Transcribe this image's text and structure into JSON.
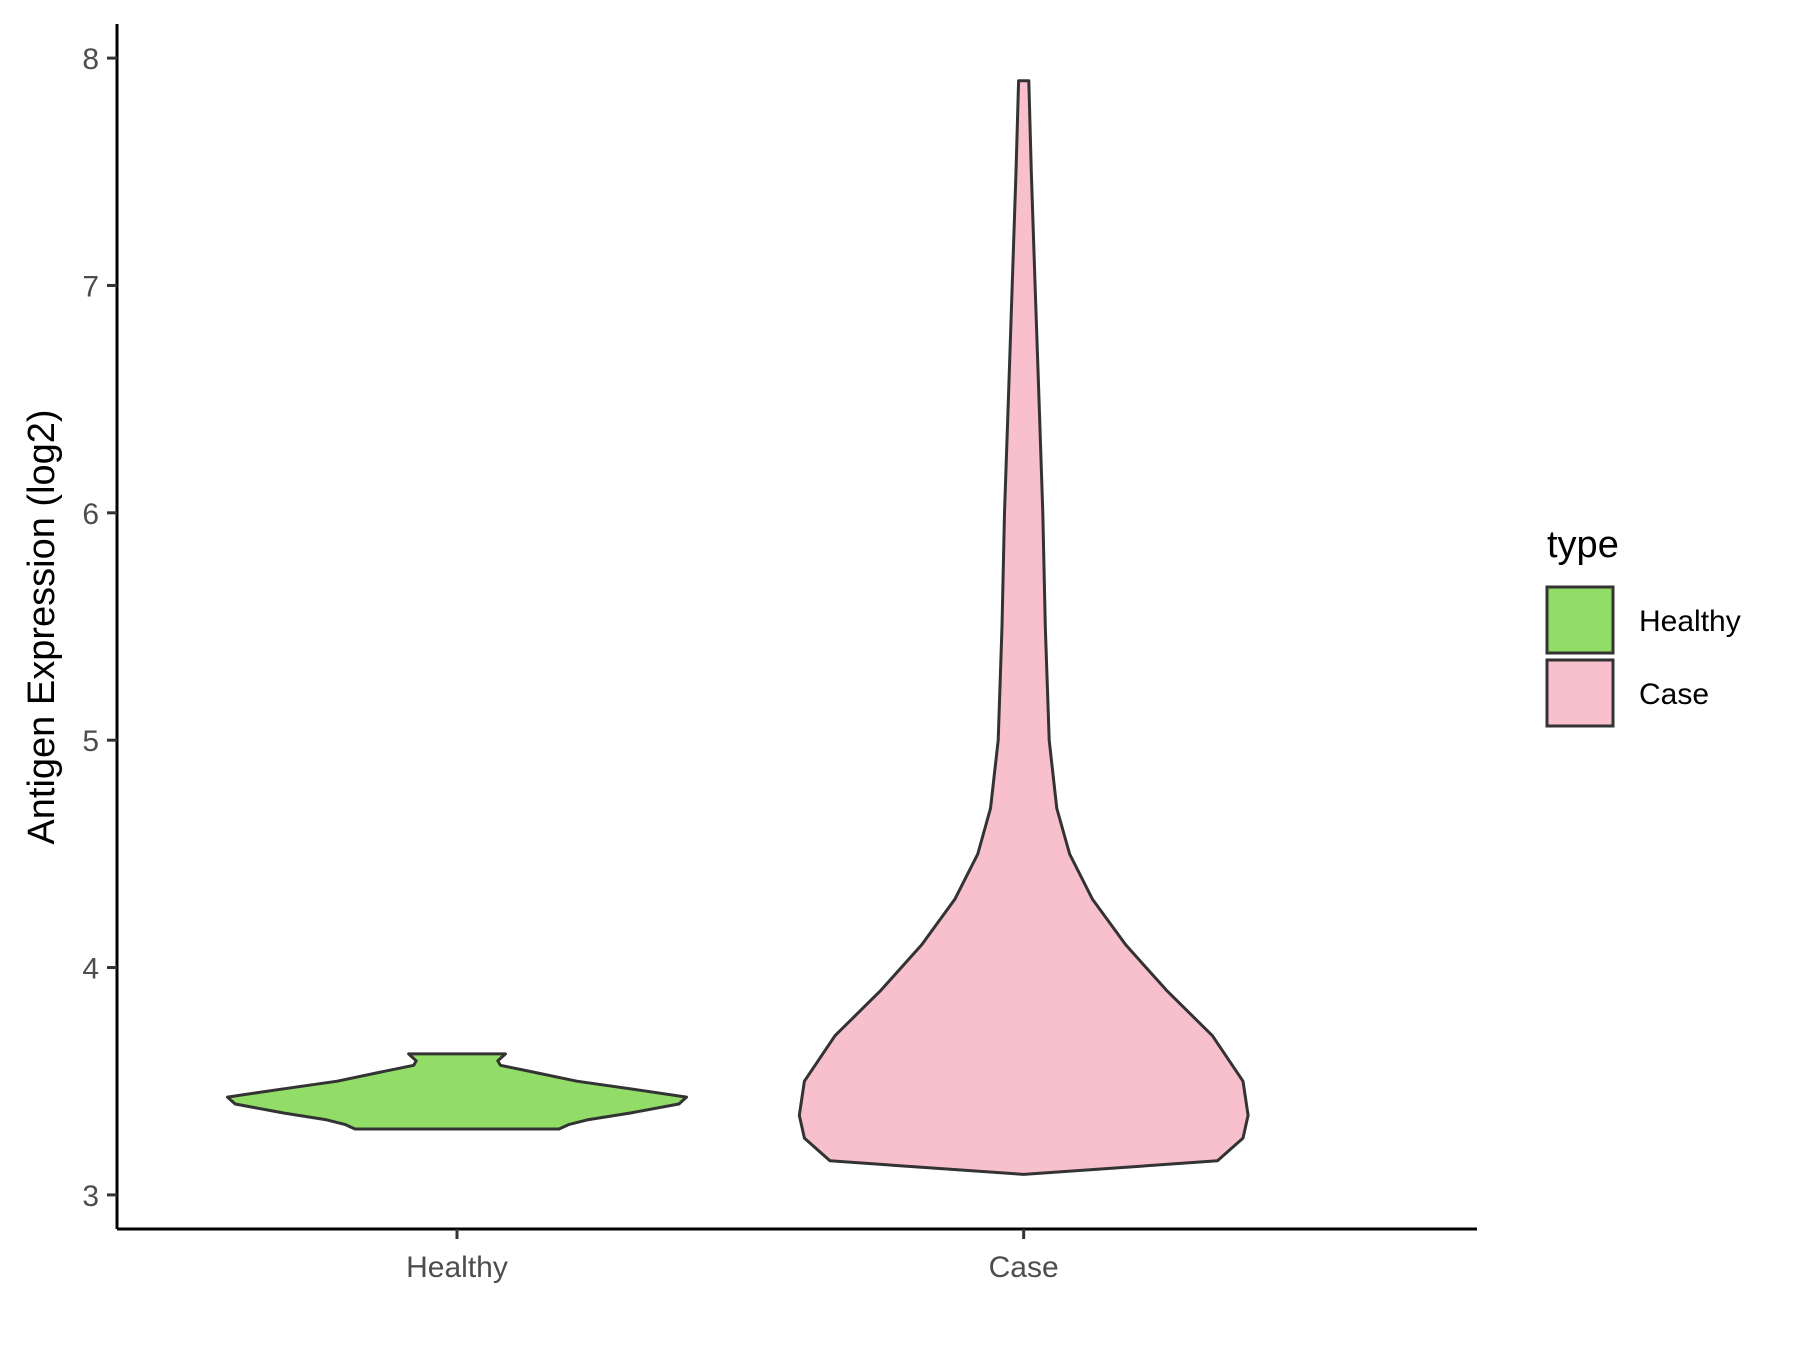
{
  "chart_data": {
    "type": "violin",
    "title": "",
    "xlabel": "",
    "ylabel": "Antigen Expression (log2)",
    "categories": [
      "Healthy",
      "Case"
    ],
    "yticks": [
      "3",
      "4",
      "5",
      "6",
      "7",
      "8"
    ],
    "ylim": [
      2.85,
      8.15
    ],
    "grid": false,
    "legend": {
      "title": "type",
      "position": "right",
      "entries": [
        {
          "label": "Healthy",
          "color": "#92DD67"
        },
        {
          "label": "Case",
          "color": "#F7C0CC"
        }
      ]
    },
    "series": [
      {
        "category": "Healthy",
        "color": "#92DD67",
        "min": 3.29,
        "max": 3.62,
        "profile": [
          [
            3.29,
            0.4
          ],
          [
            3.31,
            0.44
          ],
          [
            3.33,
            0.51
          ],
          [
            3.36,
            0.68
          ],
          [
            3.4,
            0.87
          ],
          [
            3.43,
            0.9
          ],
          [
            3.46,
            0.72
          ],
          [
            3.5,
            0.47
          ],
          [
            3.54,
            0.3
          ],
          [
            3.57,
            0.17
          ],
          [
            3.59,
            0.16
          ],
          [
            3.62,
            0.19
          ]
        ]
      },
      {
        "category": "Case",
        "color": "#F7C0CC",
        "min": 3.09,
        "max": 7.9,
        "profile": [
          [
            3.09,
            0.0
          ],
          [
            3.15,
            0.76
          ],
          [
            3.25,
            0.86
          ],
          [
            3.35,
            0.88
          ],
          [
            3.5,
            0.86
          ],
          [
            3.7,
            0.74
          ],
          [
            3.9,
            0.56
          ],
          [
            4.1,
            0.4
          ],
          [
            4.3,
            0.27
          ],
          [
            4.5,
            0.18
          ],
          [
            4.7,
            0.13
          ],
          [
            5.0,
            0.1
          ],
          [
            5.5,
            0.085
          ],
          [
            6.0,
            0.075
          ],
          [
            6.5,
            0.06
          ],
          [
            7.0,
            0.045
          ],
          [
            7.5,
            0.03
          ],
          [
            7.9,
            0.02
          ]
        ]
      }
    ]
  }
}
